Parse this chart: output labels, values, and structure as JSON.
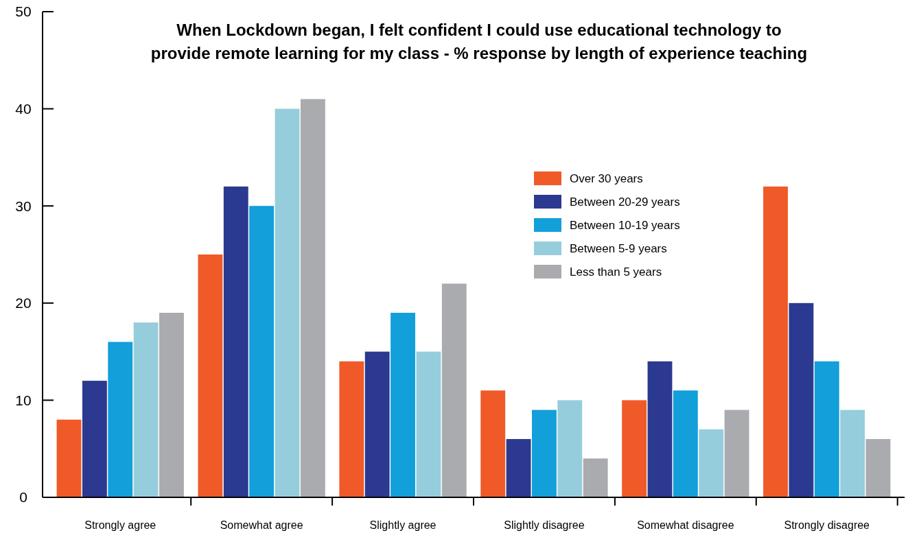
{
  "chart_data": {
    "type": "bar",
    "title": "When Lockdown began, I felt confident I could use educational technology to\nprovide remote learning for my class - % response by length of experience teaching",
    "categories": [
      "Strongly agree",
      "Somewhat agree",
      "Slightly agree",
      "Slightly disagree",
      "Somewhat disagree",
      "Strongly disagree"
    ],
    "series": [
      {
        "name": "Over 30 years",
        "color": "#f05a28",
        "values": [
          8,
          25,
          14,
          11,
          10,
          32
        ]
      },
      {
        "name": "Between 20-29 years",
        "color": "#2b3990",
        "values": [
          12,
          32,
          15,
          6,
          14,
          20
        ]
      },
      {
        "name": "Between 10-19 years",
        "color": "#129fda",
        "values": [
          16,
          30,
          19,
          9,
          11,
          14
        ]
      },
      {
        "name": "Between 5-9 years",
        "color": "#96cddc",
        "values": [
          18,
          40,
          15,
          10,
          7,
          9
        ]
      },
      {
        "name": "Less than 5 years",
        "color": "#aaabaf",
        "values": [
          19,
          41,
          22,
          4,
          9,
          6
        ]
      }
    ],
    "ylim": [
      0,
      50
    ],
    "yticks": [
      0,
      10,
      20,
      30,
      40,
      50
    ],
    "grid": false,
    "legend": "top right"
  }
}
